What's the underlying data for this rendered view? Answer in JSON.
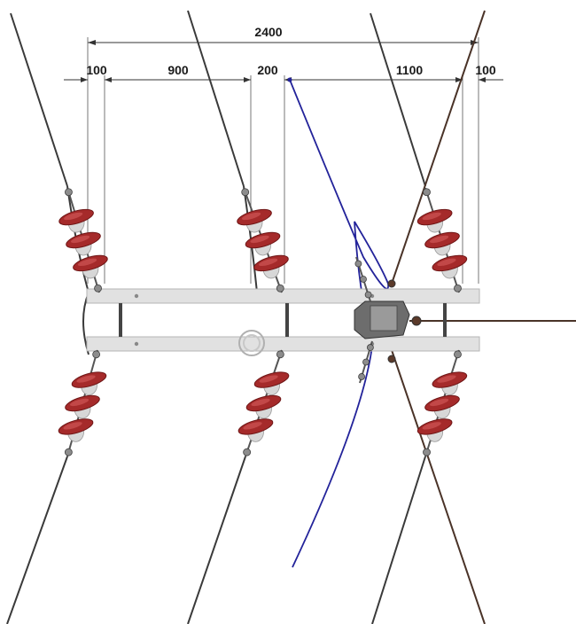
{
  "dimensions": {
    "total": "2400",
    "seg_100_left": "100",
    "seg_900": "900",
    "seg_200": "200",
    "seg_1100": "1100",
    "seg_100_right": "100"
  },
  "colors": {
    "insulator_disc": "#a52a2a",
    "crossarm": "#e1e1e1",
    "conductor": "#3a3a3a",
    "jumper_blue": "#23239a"
  }
}
